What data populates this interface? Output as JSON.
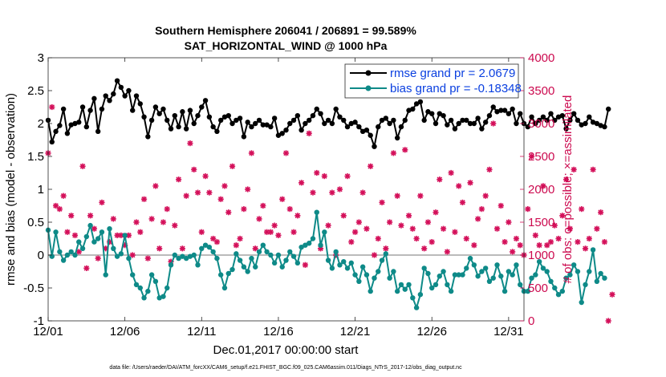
{
  "chart_data": {
    "type": "line",
    "title_line1": "Southern Hemisphere 206041 / 206891 = 99.589%",
    "title_line2": "SAT_HORIZONTAL_WIND @ 1000 hPa",
    "xlabel": "Dec.01,2017 00:00:00 start",
    "ylabel_left": "rmse and bias (model - observation)",
    "ylabel_right": "# of obs: o=possible; ×=assimilated",
    "footer": "data file: /Users/raeder/DAI/ATM_forcXX/CAM6_setup/f.e21.FHIST_BGC.f09_025.CAM6assim.011/Diags_NTrS_2017-12/obs_diag_output.nc",
    "xlim": [
      1,
      32
    ],
    "ylim_left": [
      -1,
      3
    ],
    "ylim_right": [
      0,
      4000
    ],
    "x_ticks": [
      1,
      6,
      11,
      16,
      21,
      26,
      31
    ],
    "x_tick_labels": [
      "12/01",
      "12/06",
      "12/11",
      "12/16",
      "12/21",
      "12/26",
      "12/31"
    ],
    "y_left_ticks": [
      -1,
      -0.5,
      0,
      0.5,
      1,
      1.5,
      2,
      2.5,
      3
    ],
    "y_left_tick_labels": [
      "-1",
      "-0.5",
      "0",
      "0.5",
      "1",
      "1.5",
      "2",
      "2.5",
      "3"
    ],
    "y_right_ticks": [
      0,
      500,
      1000,
      1500,
      2000,
      2500,
      3000,
      3500,
      4000
    ],
    "y_right_tick_labels": [
      "0",
      "500",
      "1000",
      "1500",
      "2000",
      "2500",
      "3000",
      "3500",
      "4000"
    ],
    "zero_line": 0,
    "colors": {
      "rmse": "#000000",
      "bias": "#0e8a88",
      "obs": "#d4105a",
      "zero": "#bbbbbb",
      "legend_text": "#0b40e0"
    },
    "series": [
      {
        "name": "rmse",
        "legend": "rmse grand pr = 2.0679",
        "step": 0.25,
        "x0": 1.0,
        "values": [
          2.05,
          1.72,
          1.88,
          1.97,
          2.22,
          1.85,
          1.98,
          2.0,
          2.02,
          2.25,
          1.95,
          2.2,
          2.38,
          1.88,
          2.22,
          2.42,
          2.35,
          2.45,
          2.65,
          2.55,
          2.42,
          2.5,
          2.2,
          2.42,
          2.3,
          2.1,
          1.8,
          2.05,
          2.25,
          2.15,
          2.22,
          2.05,
          1.92,
          2.12,
          1.95,
          2.18,
          1.92,
          2.2,
          2.0,
          2.12,
          2.25,
          2.35,
          2.1,
          1.95,
          1.88,
          2.05,
          2.1,
          2.12,
          2.0,
          2.05,
          2.08,
          1.8,
          2.02,
          1.95,
          2.0,
          2.05,
          1.98,
          1.98,
          1.95,
          2.08,
          1.82,
          1.85,
          1.9,
          2.0,
          2.05,
          2.12,
          1.9,
          2.0,
          2.05,
          2.12,
          2.22,
          2.15,
          2.0,
          2.05,
          2.0,
          2.22,
          2.1,
          2.05,
          1.95,
          2.0,
          2.02,
          1.95,
          1.88,
          1.9,
          1.82,
          1.65,
          1.95,
          2.05,
          2.08,
          2.0,
          2.05,
          1.78,
          1.95,
          2.05,
          2.2,
          2.22,
          2.3,
          2.33,
          2.05,
          2.18,
          2.15,
          2.0,
          2.15,
          2.12,
          1.98,
          2.05,
          1.92,
          2.0,
          2.05,
          2.05,
          2.0,
          2.0,
          2.08,
          1.92,
          2.02,
          2.12,
          2.25,
          2.18,
          2.2,
          2.2,
          2.15,
          2.22,
          2.0,
          2.15,
          2.0,
          1.95,
          2.1,
          2.0,
          2.05,
          2.1,
          2.05,
          2.15,
          2.05,
          2.1,
          2.12,
          1.92,
          2.05,
          2.15,
          2.05,
          1.98,
          2.0,
          2.1,
          2.02,
          2.0,
          1.97,
          1.95,
          2.22
        ]
      },
      {
        "name": "bias",
        "legend": "bias grand pr = -0.18348",
        "step": 0.25,
        "x0": 1.0,
        "values": [
          0.38,
          -0.02,
          0.35,
          0.05,
          -0.08,
          0.0,
          0.05,
          0.0,
          0.2,
          0.1,
          0.28,
          0.45,
          0.2,
          0.25,
          0.35,
          -0.3,
          0.4,
          0.1,
          -0.02,
          0.02,
          0.3,
          -0.05,
          -0.3,
          -0.45,
          -0.5,
          -0.65,
          -0.55,
          -0.3,
          -0.4,
          -0.65,
          -0.63,
          -0.5,
          -0.15,
          0.0,
          -0.05,
          -0.02,
          -0.05,
          -0.02,
          0.0,
          -0.15,
          0.1,
          0.15,
          0.12,
          0.05,
          -0.05,
          -0.3,
          -0.5,
          -0.28,
          -0.22,
          0.02,
          -0.08,
          -0.18,
          -0.25,
          -0.05,
          -0.18,
          0.05,
          0.15,
          0.05,
          0.0,
          -0.12,
          0.0,
          -0.18,
          -0.08,
          0.05,
          -0.02,
          -0.12,
          0.12,
          0.15,
          0.18,
          0.25,
          0.65,
          0.15,
          0.35,
          -0.08,
          -0.2,
          0.05,
          -0.15,
          -0.1,
          -0.2,
          -0.12,
          -0.3,
          -0.4,
          -0.18,
          -0.3,
          -0.55,
          -0.35,
          -0.25,
          -0.08,
          0.02,
          -0.35,
          -0.25,
          -0.55,
          -0.45,
          -0.52,
          -0.45,
          -0.65,
          -0.8,
          -0.6,
          -0.2,
          -0.28,
          -0.5,
          -0.45,
          -0.32,
          -0.25,
          -0.45,
          -0.55,
          -0.3,
          -0.3,
          -0.3,
          -0.2,
          -0.05,
          -0.15,
          -0.32,
          -0.25,
          -0.2,
          -0.4,
          -0.35,
          -0.15,
          -0.32,
          -0.55,
          -0.25,
          -0.3,
          -0.15,
          -0.45,
          -0.55,
          -0.55,
          -0.35,
          -0.3,
          -0.1,
          -0.2,
          -0.25,
          -0.4,
          -0.5,
          -0.6,
          -0.55,
          -0.35,
          -0.3,
          -0.15,
          -0.25,
          -0.72,
          -0.45,
          -0.25,
          0.08,
          -0.4,
          -0.28,
          -0.35
        ]
      },
      {
        "name": "obs",
        "legend": "",
        "step": 0.25,
        "x0": 1.0,
        "values": [
          2550,
          3250,
          1750,
          1700,
          1900,
          1350,
          1600,
          1300,
          1050,
          2350,
          800,
          1600,
          1400,
          950,
          1800,
          1100,
          1200,
          1550,
          1300,
          1300,
          1150,
          1300,
          1000,
          1500,
          1350,
          1850,
          950,
          1550,
          2050,
          1100,
          1500,
          1700,
          900,
          1450,
          2150,
          1100,
          1900,
          2700,
          2300,
          1950,
          1350,
          2200,
          1950,
          1250,
          1200,
          1850,
          2050,
          1650,
          2350,
          1150,
          1250,
          1700,
          2000,
          2550,
          1100,
          1550,
          1750,
          1350,
          1350,
          1450,
          1300,
          1850,
          2550,
          1700,
          1350,
          1600,
          2100,
          850,
          2850,
          1950,
          2250,
          1100,
          2200,
          1450,
          1950,
          1000,
          2000,
          1600,
          2200,
          1200,
          1350,
          1500,
          1950,
          1400,
          2350,
          1000,
          1250,
          1800,
          1100,
          1500,
          2550,
          1900,
          1450,
          2600,
          1600,
          1400,
          1250,
          1900,
          1100,
          1500,
          1200,
          1650,
          2150,
          1400,
          1050,
          2250,
          1350,
          2050,
          1800,
          1250,
          2100,
          1150,
          1550,
          1700,
          1900,
          2300,
          3000,
          1400,
          1750,
          1200,
          1500,
          1050,
          1250,
          1150,
          1000,
          1700,
          2500,
          1300,
          1150,
          2050,
          1150,
          1200,
          1450,
          1250,
          1600,
          2150,
          1400,
          2300,
          1200,
          1700,
          1100,
          1250,
          2300,
          1400,
          1650,
          1200,
          0,
          400
        ]
      }
    ]
  }
}
